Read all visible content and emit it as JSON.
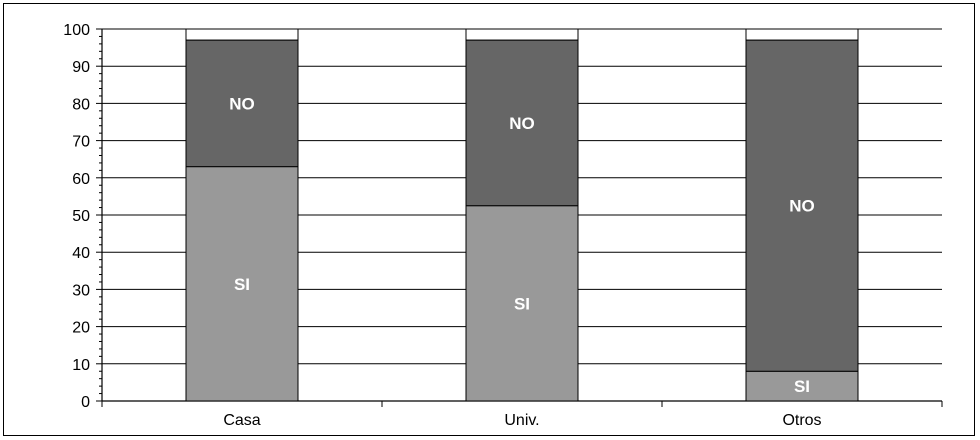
{
  "chart_data": {
    "type": "bar",
    "stacked": true,
    "title": "",
    "xlabel": "",
    "ylabel": "",
    "ylim": [
      0,
      100
    ],
    "yticks": [
      0,
      10,
      20,
      30,
      40,
      50,
      60,
      70,
      80,
      90,
      100
    ],
    "grid": true,
    "legend": "none",
    "categories": [
      "Casa",
      "Univ.",
      "Otros"
    ],
    "series": [
      {
        "name": "SI",
        "values": [
          63,
          52.5,
          8
        ],
        "color": "#999999"
      },
      {
        "name": "NO",
        "values": [
          34,
          44.5,
          89
        ],
        "color": "#666666"
      }
    ],
    "totals": [
      97,
      97,
      97
    ]
  }
}
